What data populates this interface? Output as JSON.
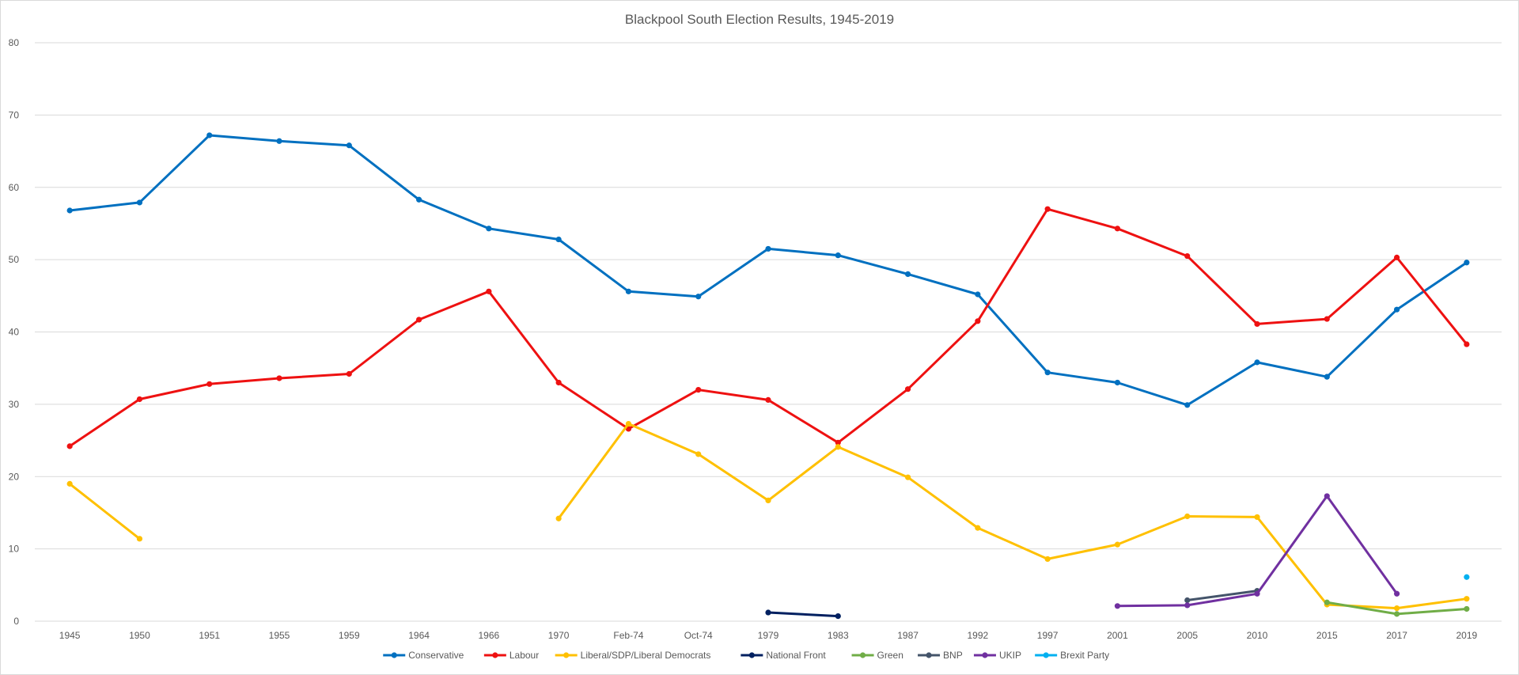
{
  "chart_data": {
    "type": "line",
    "title": "Blackpool South Election Results, 1945-2019",
    "xlabel": "",
    "ylabel": "",
    "ylim": [
      0,
      80
    ],
    "yticks": [
      0,
      10,
      20,
      30,
      40,
      50,
      60,
      70,
      80
    ],
    "grid": true,
    "legend_position": "bottom",
    "categories": [
      "1945",
      "1950",
      "1951",
      "1955",
      "1959",
      "1964",
      "1966",
      "1970",
      "Feb-74",
      "Oct-74",
      "1979",
      "1983",
      "1987",
      "1992",
      "1997",
      "2001",
      "2005",
      "2010",
      "2015",
      "2017",
      "2019"
    ],
    "series": [
      {
        "name": "Conservative",
        "color": "#0070C0",
        "values": [
          56.8,
          57.9,
          67.2,
          66.4,
          65.8,
          58.3,
          54.3,
          52.8,
          45.6,
          44.9,
          51.5,
          50.6,
          48.0,
          45.2,
          34.4,
          33.0,
          29.9,
          35.8,
          33.8,
          43.1,
          49.6
        ]
      },
      {
        "name": "Labour",
        "color": "#EE1111",
        "values": [
          24.2,
          30.7,
          32.8,
          33.6,
          34.2,
          41.7,
          45.6,
          33.0,
          26.6,
          32.0,
          30.6,
          24.7,
          32.1,
          41.5,
          57.0,
          54.3,
          50.5,
          41.1,
          41.8,
          50.3,
          38.3
        ]
      },
      {
        "name": "Liberal/SDP/Liberal Democrats",
        "color": "#FFC000",
        "values": [
          19.0,
          11.4,
          null,
          null,
          null,
          null,
          null,
          14.2,
          27.3,
          23.1,
          16.7,
          24.1,
          19.9,
          12.9,
          8.6,
          10.6,
          14.5,
          14.4,
          2.3,
          1.8,
          3.1
        ]
      },
      {
        "name": "National Front",
        "color": "#002060",
        "values": [
          null,
          null,
          null,
          null,
          null,
          null,
          null,
          null,
          null,
          null,
          1.2,
          0.7,
          null,
          null,
          null,
          null,
          null,
          null,
          null,
          null,
          null
        ]
      },
      {
        "name": "Green",
        "color": "#70AD47",
        "values": [
          null,
          null,
          null,
          null,
          null,
          null,
          null,
          null,
          null,
          null,
          null,
          null,
          null,
          null,
          null,
          null,
          null,
          null,
          2.6,
          1.0,
          1.7
        ]
      },
      {
        "name": "BNP",
        "color": "#44546A",
        "values": [
          null,
          null,
          null,
          null,
          null,
          null,
          null,
          null,
          null,
          null,
          null,
          null,
          null,
          null,
          null,
          null,
          2.9,
          4.2,
          null,
          null,
          null
        ]
      },
      {
        "name": "UKIP",
        "color": "#7030A0",
        "values": [
          null,
          null,
          null,
          null,
          null,
          null,
          null,
          null,
          null,
          null,
          null,
          null,
          null,
          null,
          null,
          2.1,
          2.2,
          3.8,
          17.3,
          3.8,
          null
        ]
      },
      {
        "name": "Brexit Party",
        "color": "#00B0F0",
        "values": [
          null,
          null,
          null,
          null,
          null,
          null,
          null,
          null,
          null,
          null,
          null,
          null,
          null,
          null,
          null,
          null,
          null,
          null,
          null,
          null,
          6.1
        ]
      }
    ]
  }
}
